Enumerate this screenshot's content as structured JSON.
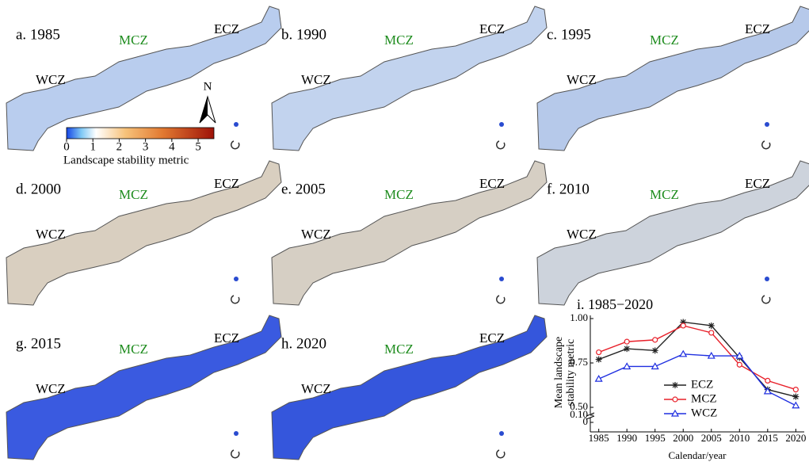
{
  "maps": [
    {
      "title": "a. 1985",
      "zones": [
        "WCZ",
        "MCZ",
        "ECZ"
      ]
    },
    {
      "title": "b. 1990",
      "zones": [
        "WCZ",
        "MCZ",
        "ECZ"
      ]
    },
    {
      "title": "c. 1995",
      "zones": [
        "WCZ",
        "MCZ",
        "ECZ"
      ]
    },
    {
      "title": "d. 2000",
      "zones": [
        "WCZ",
        "MCZ",
        "ECZ"
      ]
    },
    {
      "title": "e. 2005",
      "zones": [
        "WCZ",
        "MCZ",
        "ECZ"
      ]
    },
    {
      "title": "f. 2010",
      "zones": [
        "WCZ",
        "MCZ",
        "ECZ"
      ]
    },
    {
      "title": "g. 2015",
      "zones": [
        "WCZ",
        "MCZ",
        "ECZ"
      ]
    },
    {
      "title": "h. 2020",
      "zones": [
        "WCZ",
        "MCZ",
        "ECZ"
      ]
    }
  ],
  "north_label": "N",
  "colorbar": {
    "label": "Landscape stability metric",
    "lim": [
      0,
      5.6
    ],
    "ticks": [
      0,
      1,
      2,
      3,
      4,
      5
    ]
  },
  "chart_data": {
    "type": "line",
    "title": "i. 1985−2020",
    "xlabel": "Calendar/year",
    "ylabel": [
      "Mean landscape",
      "stability metric"
    ],
    "x": [
      1985,
      1990,
      1995,
      2000,
      2005,
      2010,
      2015,
      2020
    ],
    "xlim": [
      1983.5,
      2021.5
    ],
    "xticks": [
      1985,
      1990,
      1995,
      2000,
      2005,
      2010,
      2015,
      2020
    ],
    "ylim": [
      0,
      1
    ],
    "y_break": [
      0.1,
      0.5
    ],
    "yticks": [
      0,
      {
        "value": 0.1,
        "label": "0.10"
      },
      {
        "value": 0.5,
        "label": "0.50"
      },
      {
        "value": 0.75,
        "label": "0.75"
      },
      {
        "value": 1,
        "label": "1.00"
      }
    ],
    "legend_loc": "lower right",
    "series": [
      {
        "name": "ECZ",
        "color": "#222222",
        "marker": "star",
        "values": [
          0.77,
          0.83,
          0.82,
          0.98,
          0.96,
          0.78,
          0.6,
          0.56
        ]
      },
      {
        "name": "MCZ",
        "color": "#e8202a",
        "marker": "circle",
        "values": [
          0.81,
          0.87,
          0.88,
          0.96,
          0.92,
          0.74,
          0.65,
          0.6
        ]
      },
      {
        "name": "WCZ",
        "color": "#1f2fe0",
        "marker": "triangle",
        "values": [
          0.66,
          0.73,
          0.73,
          0.8,
          0.79,
          0.79,
          0.59,
          0.51
        ]
      }
    ]
  }
}
